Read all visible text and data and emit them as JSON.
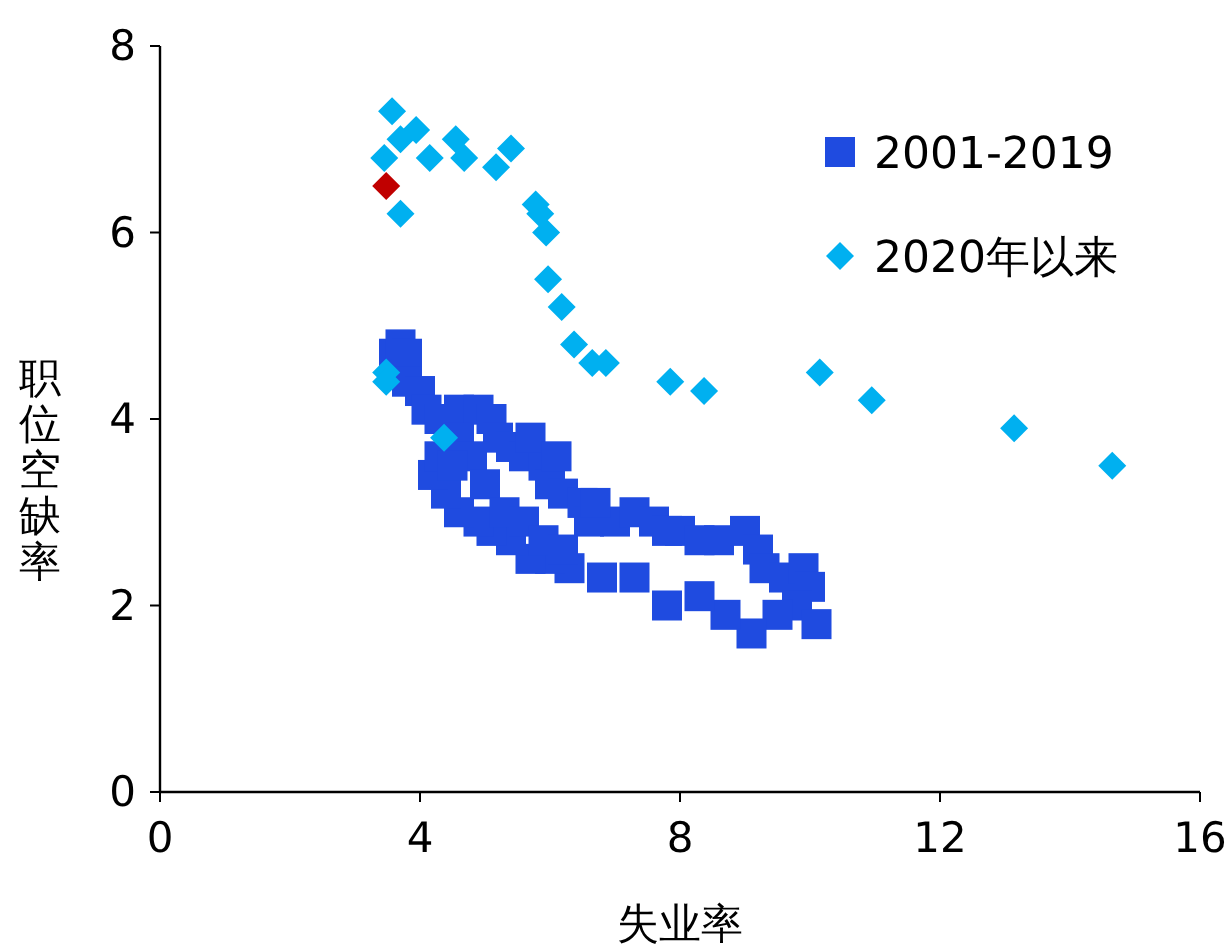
{
  "chart_data": {
    "type": "scatter",
    "xlabel": "失业率",
    "ylabel": "职位空缺率",
    "xlim": [
      0,
      16
    ],
    "xticks": [
      0,
      4,
      8,
      12,
      16
    ],
    "ylim": [
      0,
      8
    ],
    "yticks": [
      0,
      2,
      4,
      6,
      8
    ],
    "grid": false,
    "legend": "top right",
    "series": [
      {
        "name": "2001-2019",
        "color": "#1f4be0",
        "marker": "square",
        "x": [
          3.6,
          3.7,
          3.8,
          3.8,
          4.0,
          4.1,
          4.3,
          4.6,
          4.9,
          5.1,
          5.2,
          5.4,
          5.6,
          5.9,
          6.0,
          6.2,
          6.5,
          6.6,
          7.0,
          7.3,
          7.6,
          7.8,
          8.0,
          8.3,
          8.6,
          9.0,
          9.2,
          9.3,
          9.6,
          9.9,
          10.0,
          9.8,
          10.1,
          9.5,
          9.1,
          8.7,
          8.3,
          7.8,
          7.3,
          6.8,
          6.3,
          6.0,
          5.7,
          5.4,
          5.1,
          4.9,
          4.6,
          4.4,
          4.2,
          4.3,
          4.6,
          4.8,
          5.0,
          5.3,
          5.6,
          5.9,
          6.2,
          4.5,
          5.7,
          6.1,
          6.7
        ],
        "values": [
          4.7,
          4.8,
          4.7,
          4.4,
          4.3,
          4.1,
          4.0,
          4.1,
          4.1,
          4.0,
          3.8,
          3.7,
          3.6,
          3.5,
          3.3,
          3.2,
          3.1,
          2.9,
          2.9,
          3.0,
          2.9,
          2.8,
          2.8,
          2.7,
          2.7,
          2.8,
          2.6,
          2.4,
          2.3,
          2.4,
          2.2,
          2.0,
          1.8,
          1.9,
          1.7,
          1.9,
          2.1,
          2.0,
          2.3,
          2.3,
          2.4,
          2.5,
          2.5,
          2.7,
          2.8,
          2.9,
          3.0,
          3.2,
          3.4,
          3.6,
          3.8,
          3.6,
          3.3,
          3.0,
          2.9,
          2.7,
          2.6,
          3.5,
          3.8,
          3.6,
          3.1
        ]
      },
      {
        "name": "2020年以来",
        "color": "#00b0f0",
        "marker": "diamond",
        "x": [
          3.57,
          3.45,
          3.7,
          3.94,
          4.15,
          4.55,
          4.68,
          5.17,
          5.4,
          3.7,
          5.78,
          5.85,
          5.94,
          5.97,
          6.18,
          6.37,
          6.65,
          6.86,
          7.85,
          8.37,
          10.15,
          10.95,
          13.14,
          14.65,
          3.48,
          3.48,
          4.37
        ],
        "values": [
          7.3,
          6.8,
          7.0,
          7.1,
          6.8,
          7.0,
          6.8,
          6.7,
          6.9,
          6.2,
          6.3,
          6.2,
          6.0,
          5.5,
          5.2,
          4.8,
          4.6,
          4.6,
          4.4,
          4.3,
          4.5,
          4.2,
          3.9,
          3.5,
          4.5,
          4.4,
          3.8
        ]
      },
      {
        "color": "#c00000",
        "marker": "diamond",
        "x": [
          3.48
        ],
        "values": [
          6.5
        ]
      }
    ]
  }
}
